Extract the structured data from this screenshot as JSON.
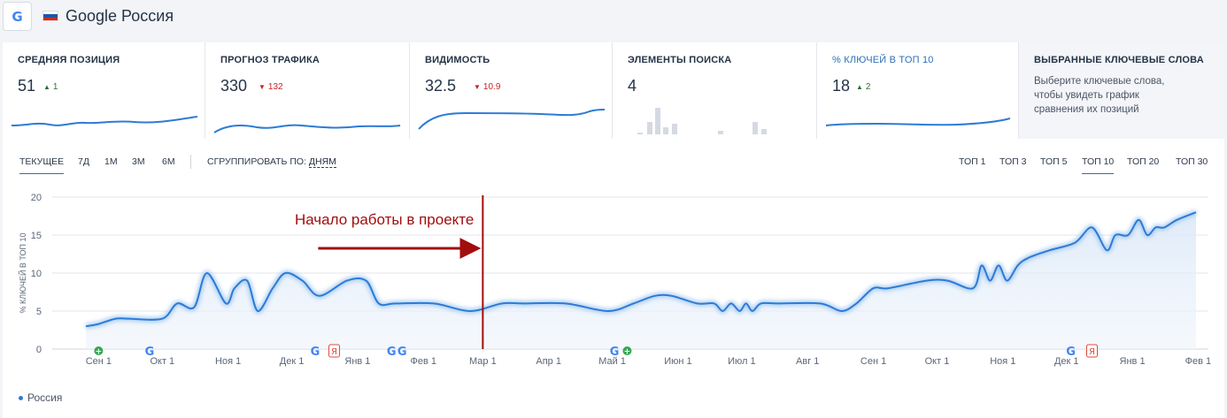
{
  "header": {
    "engine_icon": "G",
    "flag_colors": [
      "#ffffff",
      "#1c57a5",
      "#d52b1e"
    ],
    "title": "Google Россия"
  },
  "cards": [
    {
      "title": "СРЕДНЯЯ ПОЗИЦИЯ",
      "value": "51",
      "delta": "1",
      "dir": "up"
    },
    {
      "title": "ПРОГНОЗ ТРАФИКА",
      "value": "330",
      "delta": "132",
      "dir": "down"
    },
    {
      "title": "ВИДИМОСТЬ",
      "value": "32.5",
      "delta": "10.9",
      "dir": "down"
    },
    {
      "title": "ЭЛЕМЕНТЫ ПОИСКА",
      "value": "4"
    },
    {
      "title": "% КЛЮЧЕЙ В ТОП 10",
      "value": "18",
      "delta": "2",
      "dir": "up"
    },
    {
      "title": "ВЫБРАННЫЕ КЛЮЧЕВЫЕ СЛОВА",
      "description": "Выберите ключевые слова, чтобы увидеть график сравнения их позиций"
    }
  ],
  "periods": [
    "ТЕКУЩЕЕ",
    "7Д",
    "1М",
    "3М",
    "6М"
  ],
  "group_by": {
    "label": "СГРУППИРОВАТЬ ПО:",
    "value": "ДНЯМ"
  },
  "tops": [
    "ТОП 1",
    "ТОП 3",
    "ТОП 5",
    "ТОП 10",
    "ТОП 20",
    "ТОП 30"
  ],
  "legend": "Россия",
  "colors": {
    "line": "#2d7bd6",
    "marker": "#a30d0d",
    "accent": "#2d6fb7"
  },
  "chart_data": {
    "type": "area",
    "ylabel": "% КЛЮЧЕЙ В ТОП 10",
    "ylim": [
      0,
      20
    ],
    "yticks": [
      0,
      5,
      10,
      15,
      20
    ],
    "x_labels": [
      "Сен 1",
      "Окт 1",
      "Ноя 1",
      "Дек 1",
      "Янв 1",
      "Фев 1",
      "Мар 1",
      "Апр 1",
      "Май 1",
      "Июн 1",
      "Июл 1",
      "Авг 1",
      "Сен 1",
      "Окт 1",
      "Ноя 1",
      "Дек 1",
      "Янв 1",
      "Фев 1"
    ],
    "x_label_days": [
      0,
      30,
      61,
      91,
      122,
      153,
      181,
      212,
      242,
      273,
      303,
      334,
      365,
      395,
      426,
      456,
      487,
      518
    ],
    "series": [
      {
        "name": "Россия",
        "days": [
          -6,
          0,
          8,
          14,
          30,
          37,
          45,
          51,
          60,
          64,
          70,
          75,
          82,
          88,
          96,
          104,
          117,
          126,
          132,
          140,
          158,
          175,
          190,
          200,
          220,
          240,
          252,
          262,
          270,
          282,
          290,
          294,
          298,
          302,
          305,
          308,
          312,
          320,
          340,
          350,
          357,
          365,
          372,
          390,
          400,
          412,
          416,
          420,
          424,
          428,
          433,
          438,
          448,
          460,
          468,
          475,
          479,
          485,
          490,
          494,
          498,
          502,
          508,
          517
        ],
        "values": [
          3,
          3.3,
          4,
          4,
          4,
          6,
          5.5,
          10,
          6,
          8,
          9,
          5,
          8,
          10,
          9,
          7,
          9,
          9,
          6,
          6,
          6,
          5,
          6,
          6,
          6,
          5,
          6,
          7,
          7,
          6,
          6,
          5,
          6,
          5,
          6,
          5,
          6,
          6,
          6,
          5,
          6,
          8,
          8,
          9,
          9,
          8,
          11,
          9,
          11,
          9,
          11,
          12,
          13,
          14,
          16,
          13,
          15,
          15,
          17,
          15,
          16,
          16,
          17,
          18
        ]
      }
    ],
    "annotation": {
      "text": "Начало работы в проекте",
      "x_day": 181
    },
    "event_markers": [
      {
        "day": 0,
        "kind": "plus"
      },
      {
        "day": 24,
        "kind": "google"
      },
      {
        "day": 102,
        "kind": "google"
      },
      {
        "day": 111,
        "kind": "yandex"
      },
      {
        "day": 138,
        "kind": "google"
      },
      {
        "day": 143,
        "kind": "google"
      },
      {
        "day": 243,
        "kind": "google"
      },
      {
        "day": 249,
        "kind": "plus"
      },
      {
        "day": 458,
        "kind": "google"
      },
      {
        "day": 468,
        "kind": "yandex"
      }
    ],
    "grid": true
  }
}
